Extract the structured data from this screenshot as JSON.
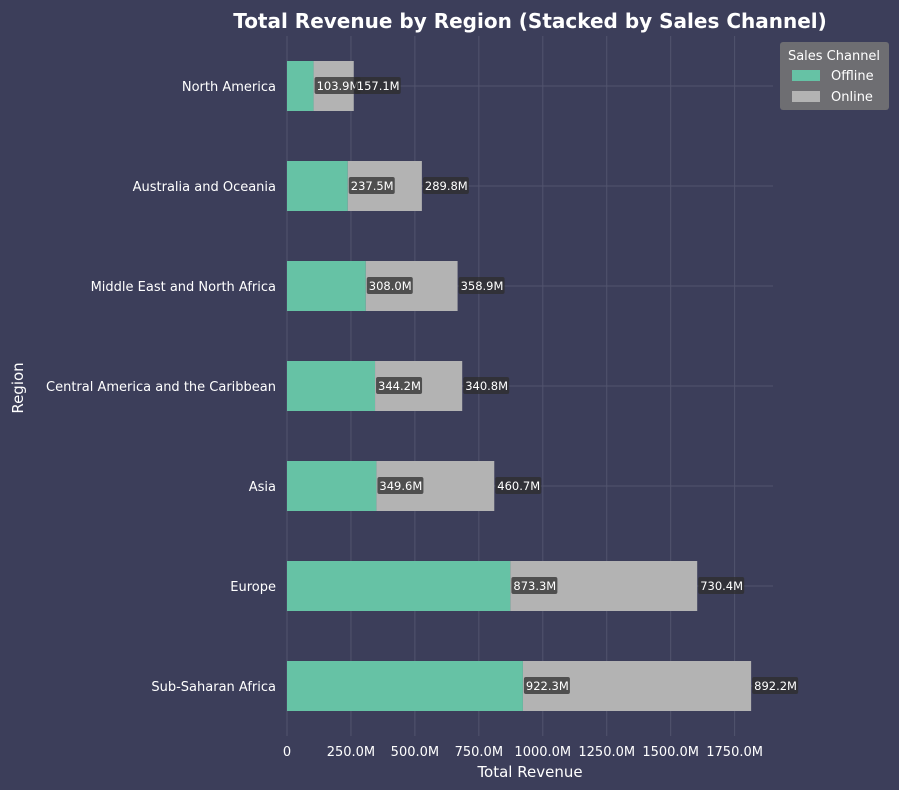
{
  "chart_data": {
    "type": "bar",
    "orientation": "horizontal",
    "stacked": true,
    "title": "Total Revenue by Region (Stacked by Sales Channel)",
    "xlabel": "Total Revenue",
    "ylabel": "Region",
    "xlim": [
      0,
      1900
    ],
    "x_ticks": [
      0,
      250,
      500,
      750,
      1000,
      1250,
      1500,
      1750
    ],
    "x_tick_labels": [
      "0",
      "250.0M",
      "500.0M",
      "750.0M",
      "1000.0M",
      "1250.0M",
      "1500.0M",
      "1750.0M"
    ],
    "categories": [
      "North America",
      "Australia and Oceania",
      "Middle East and North Africa",
      "Central America and the Caribbean",
      "Asia",
      "Europe",
      "Sub-Saharan Africa"
    ],
    "series": [
      {
        "name": "Offline",
        "color": "#66c2a5",
        "values": [
          103.9,
          237.5,
          308.0,
          344.2,
          349.6,
          873.3,
          922.3
        ],
        "labels": [
          "103.9M",
          "237.5M",
          "308.0M",
          "344.2M",
          "349.6M",
          "873.3M",
          "922.3M"
        ]
      },
      {
        "name": "Online",
        "color": "#b3b3b3",
        "values": [
          157.1,
          289.8,
          358.9,
          340.8,
          460.7,
          730.4,
          892.2
        ],
        "labels": [
          "157.1M",
          "289.8M",
          "358.9M",
          "340.8M",
          "460.7M",
          "730.4M",
          "892.2M"
        ]
      }
    ],
    "legend": {
      "title": "Sales Channel",
      "position": "top-right"
    },
    "grid": true,
    "colors": {
      "background": "#3c3e5a",
      "grid": "#52546e",
      "text": "#ffffff",
      "label_box": "#2e2e2e",
      "legend_bg": "#6e6e72"
    }
  }
}
